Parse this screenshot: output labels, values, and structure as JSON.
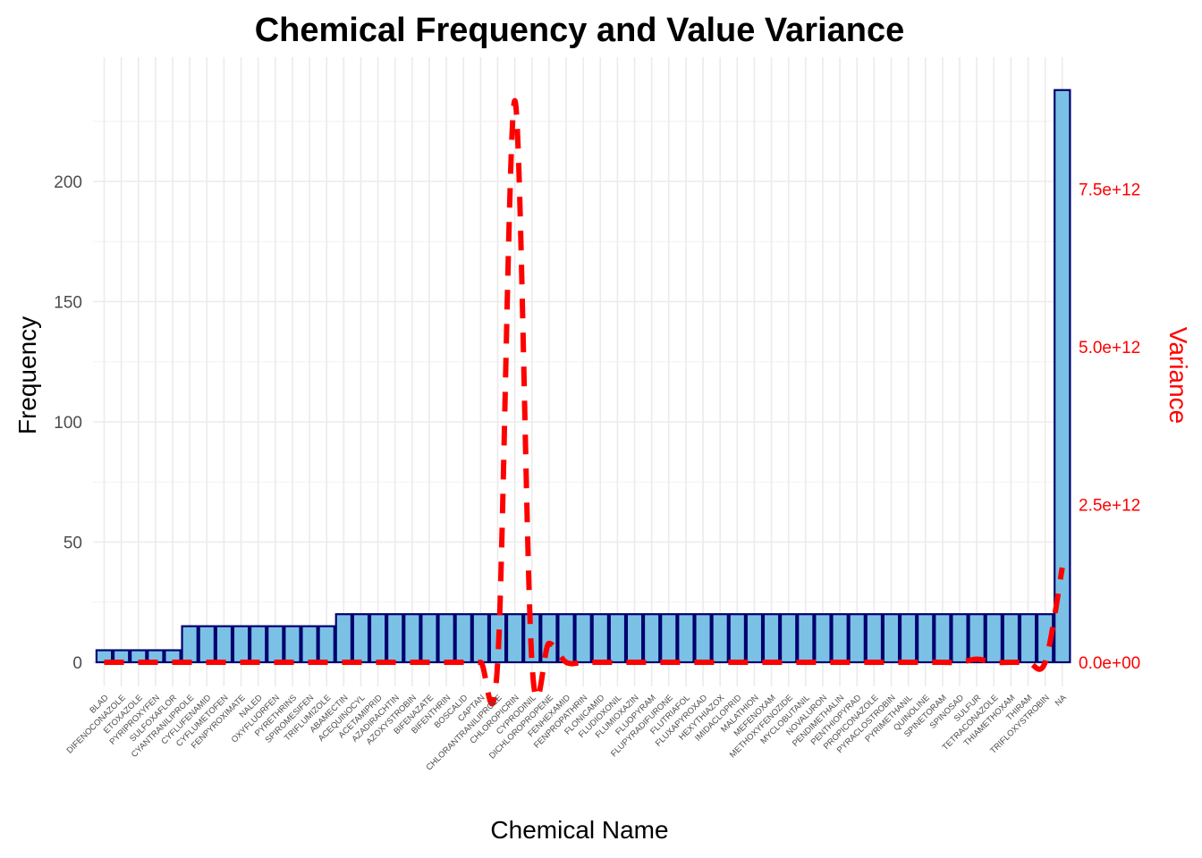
{
  "chart_data": {
    "type": "bar",
    "title": "Chemical Frequency and Value Variance",
    "xlabel": "Chemical Name",
    "ylabel": "Frequency",
    "y2label": "Variance",
    "ylim": [
      0,
      238
    ],
    "y2lim": [
      0,
      9000000000000
    ],
    "yticks": [
      {
        "value": 0,
        "label": "0"
      },
      {
        "value": 50,
        "label": "50"
      },
      {
        "value": 100,
        "label": "100"
      },
      {
        "value": 150,
        "label": "150"
      },
      {
        "value": 200,
        "label": "200"
      }
    ],
    "y2ticks": [
      {
        "value": 0,
        "label": "0.0e+00"
      },
      {
        "value": 2500000000000,
        "label": "2.5e+12"
      },
      {
        "value": 5000000000000,
        "label": "5.0e+12"
      },
      {
        "value": 7500000000000,
        "label": "7.5e+12"
      }
    ],
    "grid": true,
    "categories": [
      "BLAD",
      "DIFENOCONAZOLE",
      "ETOXAZOLE",
      "PYRIPROXYFEN",
      "SULFOXAFLOR",
      "CYANTRANILIPROLE",
      "CYFLUFENAMID",
      "CYFLUMETOFEN",
      "FENPYROXIMATE",
      "NALED",
      "OXYFLUORFEN",
      "PYRETHRINS",
      "SPIROMESIFEN",
      "TRIFLUMIZOLE",
      "ABAMECTIN",
      "ACEQUINOCYL",
      "ACETAMIPRID",
      "AZADIRACHTIN",
      "AZOXYSTROBIN",
      "BIFENAZATE",
      "BIFENTHRIN",
      "BOSCALID",
      "CAPTAN",
      "CHLORANTRANILIPROLE",
      "CHLOROPICRIN",
      "CYPRODINIL",
      "DICHLOROPROPENE",
      "FENHEXAMID",
      "FENPROPATHRIN",
      "FLONICAMID",
      "FLUDIOXONIL",
      "FLUMIOXAZIN",
      "FLUOPYRAM",
      "FLUPYRADIFURONE",
      "FLUTRIAFOL",
      "FLUXAPYROXAD",
      "HEXYTHIAZOX",
      "IMIDACLOPRID",
      "MALATHION",
      "MEFENOXAM",
      "METHOXYFENOZIDE",
      "MYCLOBUTANIL",
      "NOVALURON",
      "PENDIMETHALIN",
      "PENTHIOPYRAD",
      "PROPICONAZOLE",
      "PYRACLOSTROBIN",
      "PYRIMETHANIL",
      "QUINOLINE",
      "SPINETORAM",
      "SPINOSAD",
      "SULFUR",
      "TETRACONAZOLE",
      "THIAMETHOXAM",
      "THIRAM",
      "TRIFLOXYSTROBIN",
      "NA"
    ],
    "series": [
      {
        "type": "bar",
        "axis": "left",
        "color": "#7bc1e6",
        "edge_color": "#00006e",
        "values": [
          5,
          5,
          5,
          5,
          5,
          15,
          15,
          15,
          15,
          15,
          15,
          15,
          15,
          15,
          20,
          20,
          20,
          20,
          20,
          20,
          20,
          20,
          20,
          20,
          20,
          20,
          20,
          20,
          20,
          20,
          20,
          20,
          20,
          20,
          20,
          20,
          20,
          20,
          20,
          20,
          20,
          20,
          20,
          20,
          20,
          20,
          20,
          20,
          20,
          20,
          20,
          20,
          20,
          20,
          20,
          20,
          238
        ]
      },
      {
        "type": "line",
        "axis": "right",
        "style": "dashed",
        "color": "#ff0000",
        "values": [
          0,
          0,
          0,
          0,
          0,
          0,
          0,
          0,
          0,
          0,
          0,
          0,
          0,
          0,
          0,
          0,
          0,
          0,
          0,
          0,
          0,
          0,
          0,
          0,
          8900000000000,
          0,
          300000000000,
          0,
          0,
          0,
          0,
          0,
          0,
          0,
          0,
          0,
          0,
          0,
          0,
          0,
          0,
          0,
          0,
          0,
          0,
          0,
          0,
          0,
          0,
          0,
          0,
          50000000000,
          0,
          0,
          0,
          0,
          1500000000000
        ]
      }
    ]
  }
}
